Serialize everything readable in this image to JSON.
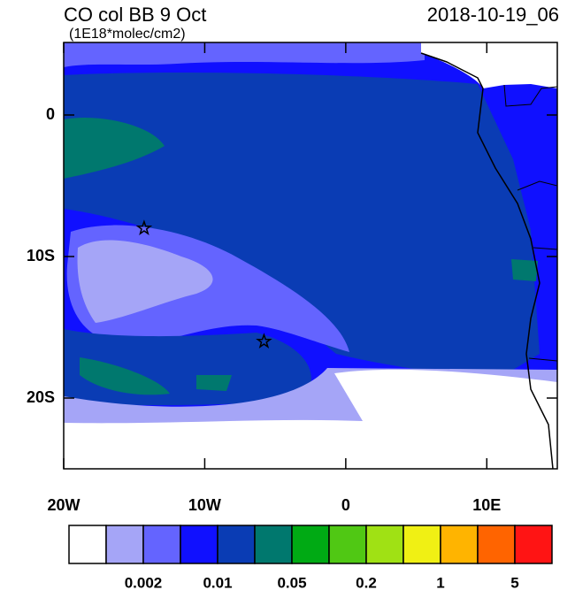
{
  "chart_data": {
    "type": "map",
    "title": "CO col BB 9 Oct",
    "subtitle": "(1E18*molec/cm2)",
    "date": "2018-10-19_06",
    "xlim": [
      -20,
      15
    ],
    "ylim": [
      -25,
      5.125
    ],
    "xticks": [
      {
        "value": -20,
        "label": "20W"
      },
      {
        "value": -10,
        "label": "10W"
      },
      0,
      {
        "value": 10,
        "label": "10E"
      }
    ],
    "yticks": [
      0,
      {
        "value": -10,
        "label": "10S"
      },
      {
        "value": -20,
        "label": "20S"
      }
    ],
    "markers": [
      {
        "lon": -14.3,
        "lat": -8
      },
      {
        "lon": -5.8,
        "lat": -16
      }
    ],
    "colorbar": {
      "colors": [
        "#ffffff",
        "#a5a5f7",
        "#6464ff",
        "#1010ff",
        "#0a3cb4",
        "#00786e",
        "#00aa14",
        "#50c814",
        "#a0e114",
        "#f0f014",
        "#ffb400",
        "#ff6400",
        "#ff1414"
      ],
      "levels": [
        0.002,
        0.01,
        0.05,
        0.2,
        1,
        5
      ]
    }
  }
}
